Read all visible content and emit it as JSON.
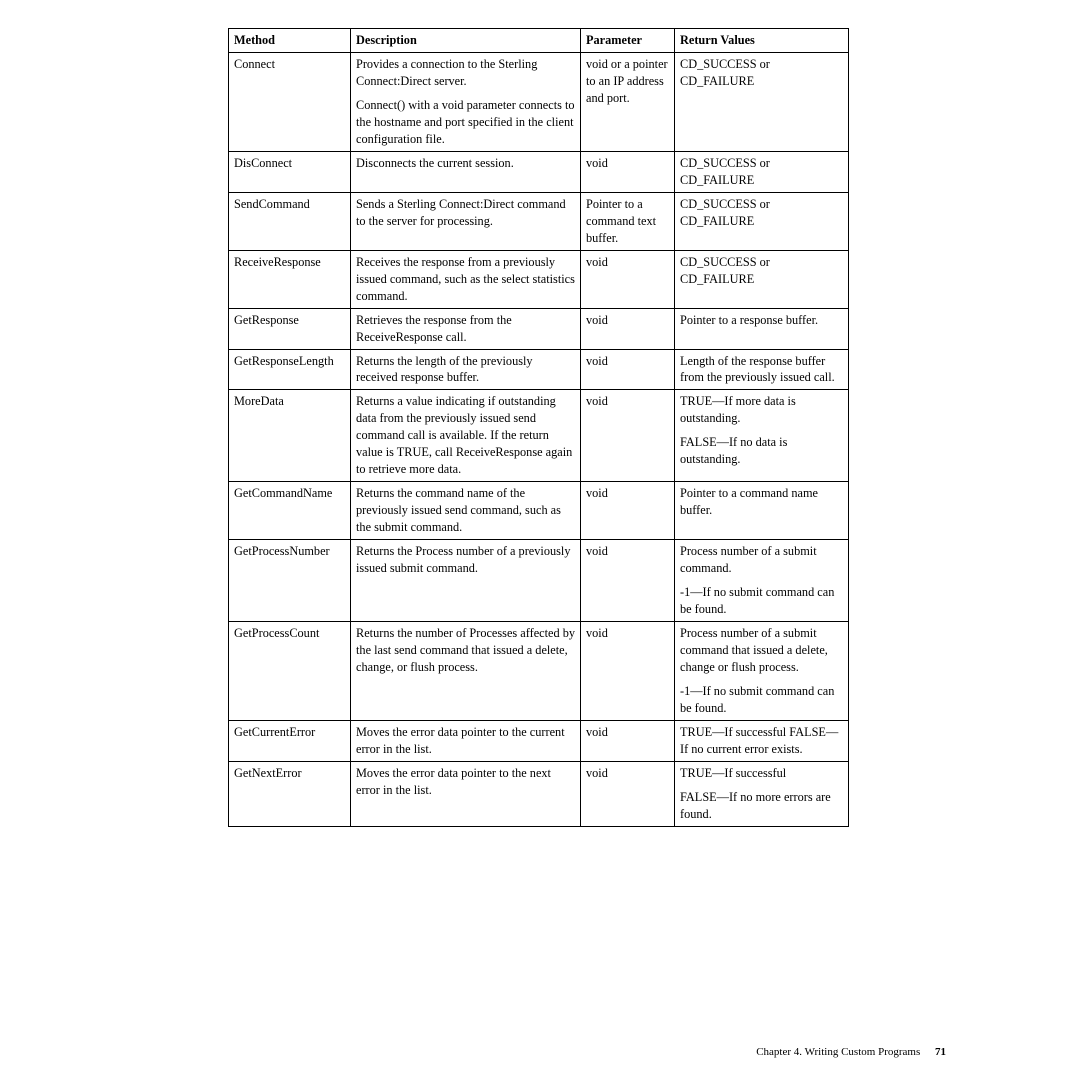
{
  "table": {
    "headers": [
      "Method",
      "Description",
      "Parameter",
      "Return Values"
    ],
    "rows": [
      {
        "method": "Connect",
        "desc_p1": "Provides a connection to the Sterling Connect:Direct server.",
        "desc_p2": "Connect() with a void parameter connects to the hostname and port specified in the client configuration file.",
        "param": "void or a pointer to an IP address and port.",
        "ret": "CD_SUCCESS or CD_FAILURE"
      },
      {
        "method": "DisConnect",
        "desc": "Disconnects the current session.",
        "param": "void",
        "ret": "CD_SUCCESS or CD_FAILURE"
      },
      {
        "method": "SendCommand",
        "desc": "Sends a Sterling Connect:Direct command to the server for processing.",
        "param": "Pointer to a command text buffer.",
        "ret": "CD_SUCCESS or CD_FAILURE"
      },
      {
        "method": "ReceiveResponse",
        "desc": "Receives the response from a previously issued command, such as the select statistics command.",
        "param": "void",
        "ret": "CD_SUCCESS or CD_FAILURE"
      },
      {
        "method": "GetResponse",
        "desc": "Retrieves the response from the ReceiveResponse call.",
        "param": "void",
        "ret": "Pointer to a response buffer."
      },
      {
        "method": "GetResponseLength",
        "desc": "Returns the length of the previously received response buffer.",
        "param": "void",
        "ret": "Length of the response buffer from the previously issued call."
      },
      {
        "method": "MoreData",
        "desc": "Returns a value indicating if outstanding data from the previously issued send command call is available. If the return value is TRUE, call ReceiveResponse again to retrieve more data.",
        "param": "void",
        "ret_p1": "TRUE—If more data is outstanding.",
        "ret_p2": "FALSE—If no data is outstanding."
      },
      {
        "method": "GetCommandName",
        "desc": "Returns the command name of the previously issued send command, such as the submit command.",
        "param": "void",
        "ret": "Pointer to a command name buffer."
      },
      {
        "method": "GetProcessNumber",
        "desc": "Returns the Process number of a previously issued submit command.",
        "param": "void",
        "ret_p1": "Process number of a submit command.",
        "ret_p2": "-1—If no submit command can be found."
      },
      {
        "method": "GetProcessCount",
        "desc": "Returns the number of Processes affected by the last send command that issued a delete, change, or flush process.",
        "param": "void",
        "ret_p1": "Process number of a submit command that issued a delete, change or flush process.",
        "ret_p2": "-1—If no submit command can be found."
      },
      {
        "method": "GetCurrentError",
        "desc": "Moves the error data pointer to the current error in the list.",
        "param": "void",
        "ret": "TRUE—If successful FALSE—If no current error exists."
      },
      {
        "method": "GetNextError",
        "desc": "Moves the error data pointer to the next error in the list.",
        "param": "void",
        "ret_p1": "TRUE—If successful",
        "ret_p2": "FALSE—If no more errors are found."
      }
    ]
  },
  "footer": {
    "chapter": "Chapter 4. Writing Custom Programs",
    "page": "71"
  }
}
